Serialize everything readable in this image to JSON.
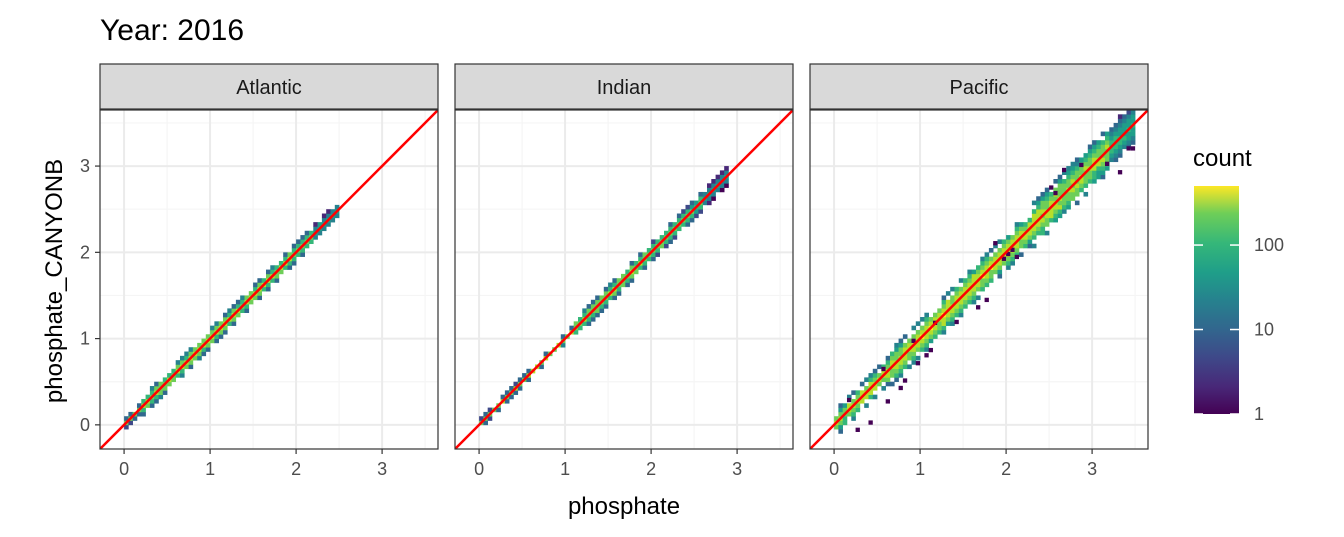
{
  "chart_data": {
    "type": "heatmap",
    "title": "Year: 2016",
    "xlabel": "phosphate",
    "ylabel": "phosphate_CANYONB",
    "xlim": [
      -0.28,
      3.65
    ],
    "ylim": [
      -0.28,
      3.65
    ],
    "x_ticks": [
      "0",
      "1",
      "2",
      "3"
    ],
    "y_ticks": [
      "0",
      "1",
      "2",
      "3"
    ],
    "reference_line": {
      "slope": 1,
      "intercept": 0,
      "color": "#ff0000"
    },
    "grid": true,
    "fill_scale": {
      "name": "count",
      "scale": "log10",
      "min": 1,
      "max": 500,
      "labels": [
        "1",
        "10",
        "100"
      ],
      "palette": "viridis"
    },
    "legend_position": "right",
    "panels": [
      {
        "label": "Atlantic",
        "x_range": [
          0,
          2.45
        ],
        "spread": 0.06,
        "peak_count": 300
      },
      {
        "label": "Indian",
        "x_range": [
          0,
          2.85
        ],
        "spread": 0.05,
        "peak_count": 250
      },
      {
        "label": "Pacific",
        "x_range": [
          0,
          3.45
        ],
        "spread": 0.13,
        "peak_count": 400
      }
    ],
    "colors": {
      "panel_border": "#333333",
      "strip_fill": "#d9d9d9",
      "grid_major": "#ebebeb",
      "grid_minor": "#f5f5f5",
      "line": "#ff0000"
    }
  }
}
